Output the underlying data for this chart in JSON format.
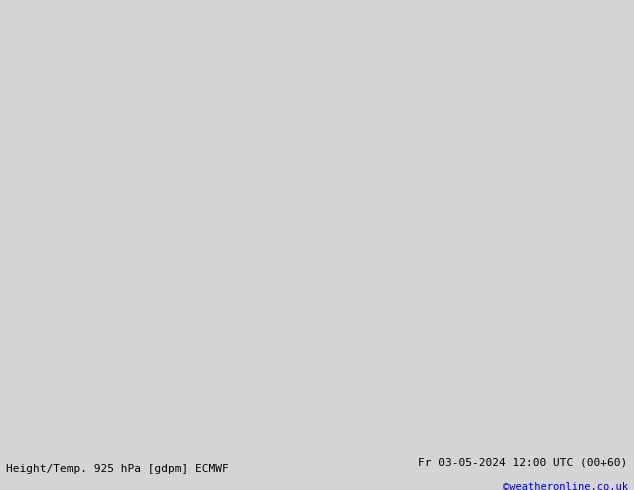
{
  "title_left": "Height/Temp. 925 hPa [gdpm] ECMWF",
  "title_right": "Fr 03-05-2024 12:00 UTC (00+60)",
  "watermark": "©weatheronline.co.uk",
  "bg_color": "#d4d4d4",
  "land_color": "#b5e68d",
  "ocean_color": "#d4d4d4",
  "border_color": "#888888",
  "fig_width": 6.34,
  "fig_height": 4.9,
  "dpi": 100,
  "watermark_color": "#0000cc",
  "title_color": "#000000",
  "lon_min": -105,
  "lon_max": 25,
  "lat_min": -68,
  "lat_max": 15
}
